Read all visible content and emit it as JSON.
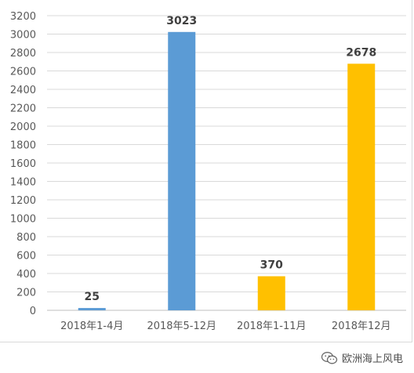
{
  "chart_data": {
    "type": "bar",
    "categories": [
      "2018年1-4月",
      "2018年5-12月",
      "2018年1-11月",
      "2018年12月"
    ],
    "values": [
      25,
      3023,
      370,
      2678
    ],
    "bar_colors": [
      "#5b9bd5",
      "#5b9bd5",
      "#ffc000",
      "#ffc000"
    ],
    "data_labels": [
      "25",
      "3023",
      "370",
      "2678"
    ],
    "y_ticks": [
      "0",
      "200",
      "400",
      "600",
      "800",
      "1000",
      "1200",
      "1400",
      "1600",
      "1800",
      "2000",
      "2200",
      "2400",
      "2600",
      "2800",
      "3000",
      "3200"
    ],
    "ylim": [
      0,
      3200
    ],
    "grid": true,
    "legend": "none"
  },
  "watermark": {
    "text": "欧洲海上风电",
    "icon": "wechat-icon"
  }
}
